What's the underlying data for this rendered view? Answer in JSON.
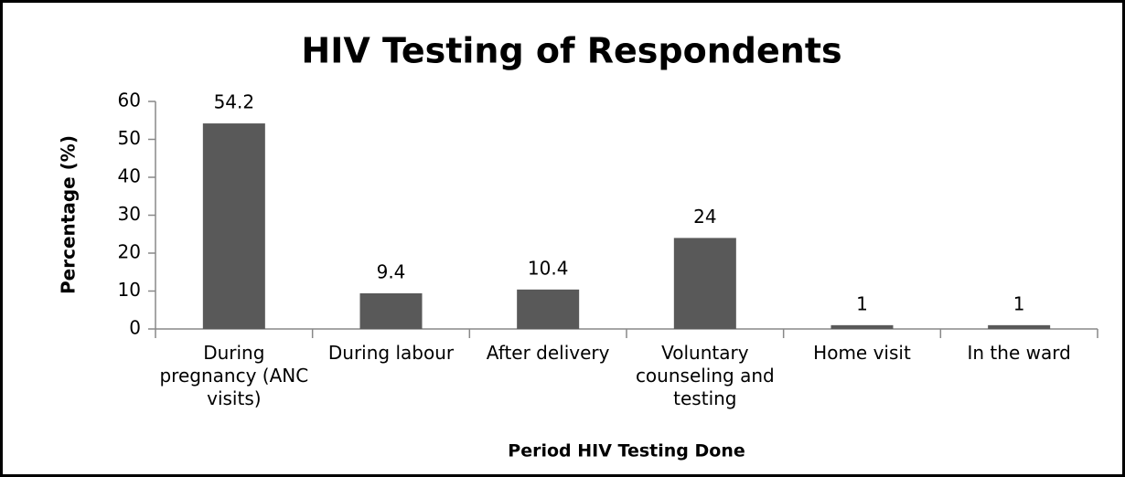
{
  "chart_data": {
    "type": "bar",
    "title": "HIV Testing of Respondents",
    "x_label": "Period HIV Testing Done",
    "y_label": "Percentage (%)",
    "categories": [
      "During pregnancy (ANC visits)",
      "During labour",
      "After delivery",
      "Voluntary counseling and testing",
      "Home visit",
      "In the ward"
    ],
    "values": [
      54.2,
      9.4,
      10.4,
      24,
      1,
      1
    ],
    "color": "#595959",
    "ylim": [
      0,
      60
    ],
    "yticks": [
      0,
      10,
      20,
      30,
      40,
      50,
      60
    ],
    "grid": false,
    "data_labels": true
  }
}
